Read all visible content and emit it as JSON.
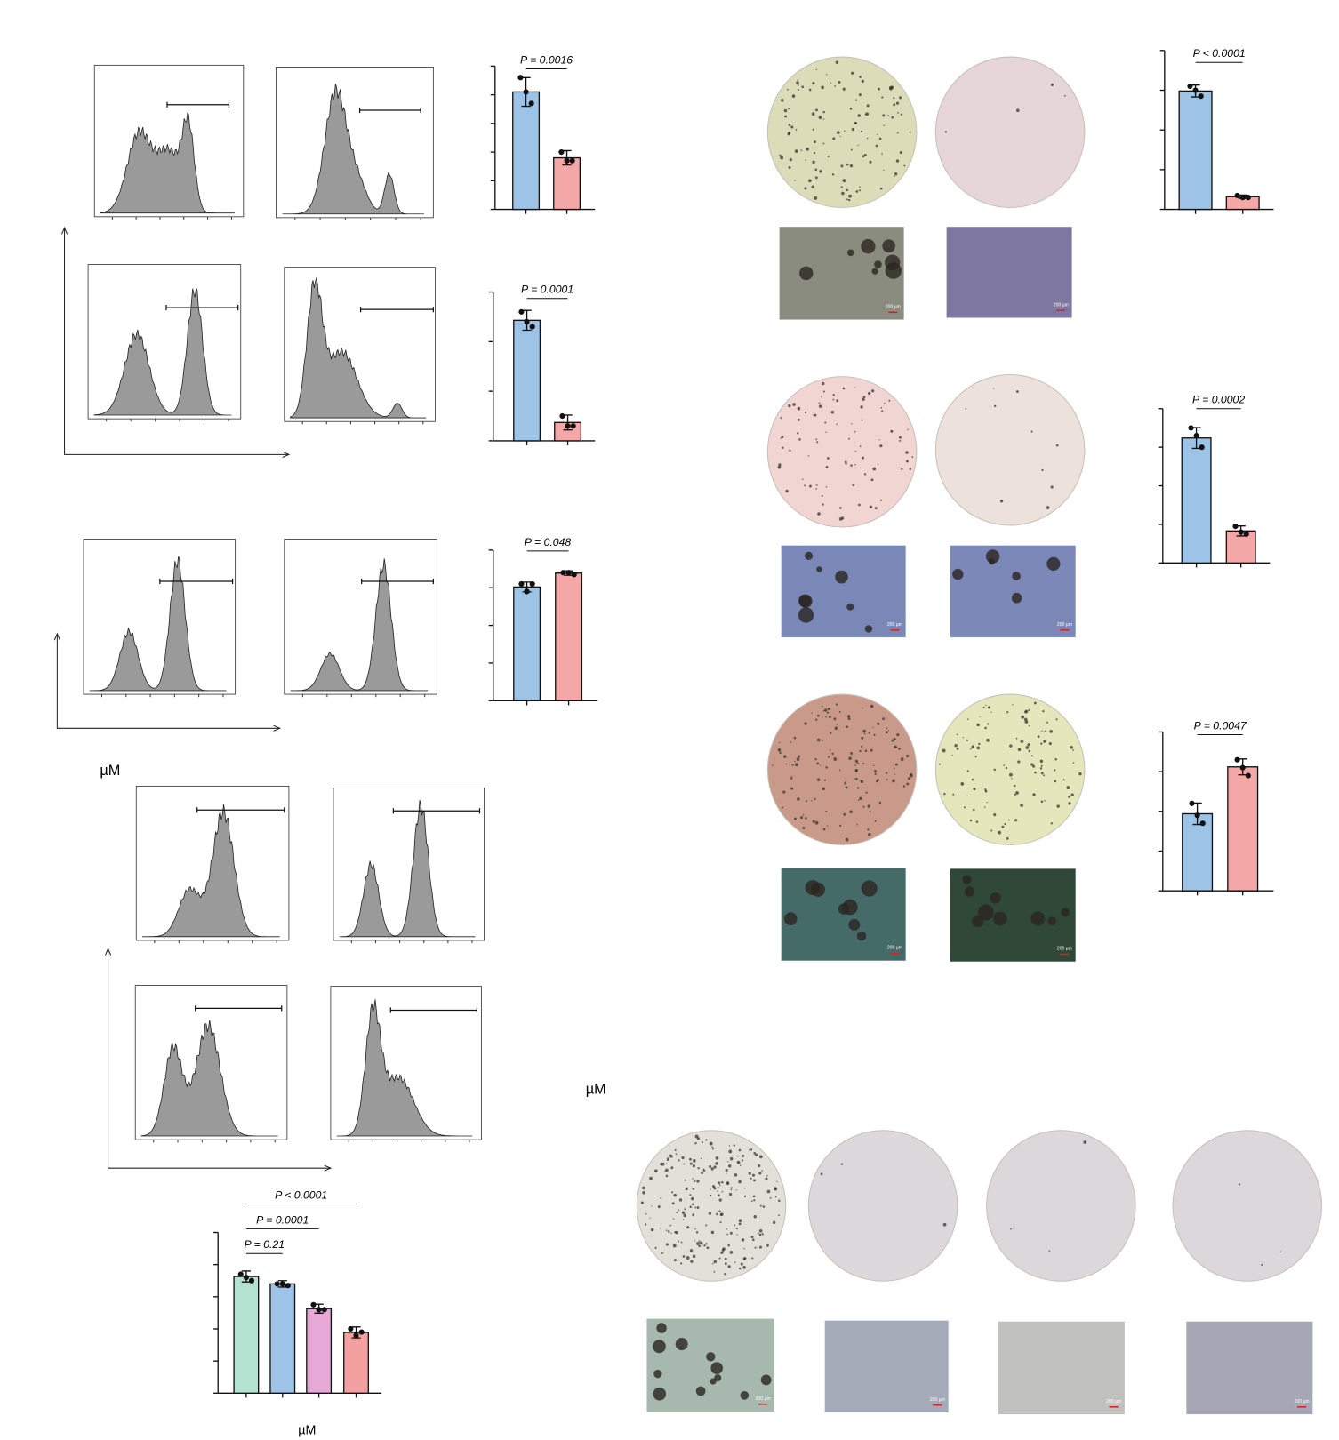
{
  "chart_data": [
    {
      "type": "bar",
      "annotations": [
        "P = 0.0016"
      ],
      "categories": [
        null,
        null
      ],
      "colors": [
        "#9dc3e6",
        "#f4a7a7"
      ],
      "values": [
        4.1,
        1.8
      ],
      "errors": [
        0.5,
        0.25
      ],
      "points": [
        [
          4.6,
          4.1,
          3.7
        ],
        [
          2.0,
          1.7,
          1.7
        ]
      ],
      "ylim": [
        0,
        5
      ],
      "yticks": [
        0,
        1,
        2,
        3,
        4,
        5
      ]
    },
    {
      "type": "bar",
      "annotations": [
        "P = 0.0001"
      ],
      "categories": [
        null,
        null
      ],
      "colors": [
        "#9dc3e6",
        "#f4a7a7"
      ],
      "values": [
        2.43,
        0.37
      ],
      "errors": [
        0.2,
        0.15
      ],
      "points": [
        [
          2.6,
          2.4,
          2.3
        ],
        [
          0.5,
          0.3,
          0.3
        ]
      ],
      "ylim": [
        0,
        3
      ],
      "yticks": [
        0,
        1,
        2,
        3
      ]
    },
    {
      "type": "bar",
      "annotations": [
        "P = 0.048"
      ],
      "categories": [
        null,
        null
      ],
      "colors": [
        "#9dc3e6",
        "#f4a7a7"
      ],
      "values": [
        3.02,
        3.39
      ],
      "errors": [
        0.13,
        0.06
      ],
      "points": [
        [
          3.1,
          2.9,
          3.1
        ],
        [
          3.4,
          3.4,
          3.35
        ]
      ],
      "ylim": [
        0,
        4
      ],
      "yticks": [
        0,
        1,
        2,
        3,
        4
      ]
    },
    {
      "type": "bar",
      "annotations": [
        "P < 0.0001"
      ],
      "categories": [
        null,
        null
      ],
      "colors": [
        "#9dc3e6",
        "#f4a7a7"
      ],
      "values": [
        2.98,
        0.32
      ],
      "errors": [
        0.15,
        0.04
      ],
      "points": [
        [
          3.1,
          3.0,
          2.85
        ],
        [
          0.35,
          0.3,
          0.3
        ]
      ],
      "ylim": [
        0,
        4
      ],
      "yticks": [
        0,
        1,
        2,
        3,
        4
      ]
    },
    {
      "type": "bar",
      "annotations": [
        "P = 0.0002"
      ],
      "categories": [
        null,
        null
      ],
      "colors": [
        "#9dc3e6",
        "#f4a7a7"
      ],
      "values": [
        3.24,
        0.83
      ],
      "errors": [
        0.27,
        0.13
      ],
      "points": [
        [
          3.5,
          3.3,
          3.0
        ],
        [
          0.95,
          0.8,
          0.75
        ]
      ],
      "ylim": [
        0,
        4
      ],
      "yticks": [
        0,
        1,
        2,
        3,
        4
      ]
    },
    {
      "type": "bar",
      "annotations": [
        "P = 0.0047"
      ],
      "categories": [
        null,
        null
      ],
      "colors": [
        "#9dc3e6",
        "#f4a7a7"
      ],
      "values": [
        1.94,
        3.12
      ],
      "errors": [
        0.27,
        0.2
      ],
      "points": [
        [
          2.2,
          1.9,
          1.7
        ],
        [
          3.3,
          3.1,
          2.9
        ]
      ],
      "ylim": [
        0,
        4
      ],
      "yticks": [
        0,
        1,
        2,
        3,
        4
      ]
    },
    {
      "type": "bar",
      "annotations": [
        "P = 0.21",
        "P = 0.0001",
        "P < 0.0001"
      ],
      "categories": [
        null,
        null,
        null,
        null
      ],
      "colors": [
        "#b3e2d0",
        "#9dc3e6",
        "#e6a8d7",
        "#f4a0a0"
      ],
      "values": [
        3.63,
        3.4,
        2.63,
        1.89
      ],
      "errors": [
        0.17,
        0.1,
        0.14,
        0.17
      ],
      "points": [
        [
          3.7,
          3.6,
          3.5
        ],
        [
          3.4,
          3.4,
          3.35
        ],
        [
          2.75,
          2.6,
          2.6
        ],
        [
          2.0,
          1.8,
          1.9
        ]
      ],
      "ylim": [
        0,
        5
      ],
      "yticks": [
        0,
        1,
        2,
        3,
        4,
        5
      ]
    }
  ],
  "unit_labels": [
    "µM",
    "µM",
    "µM"
  ],
  "scale_bar_label": "200 µm"
}
